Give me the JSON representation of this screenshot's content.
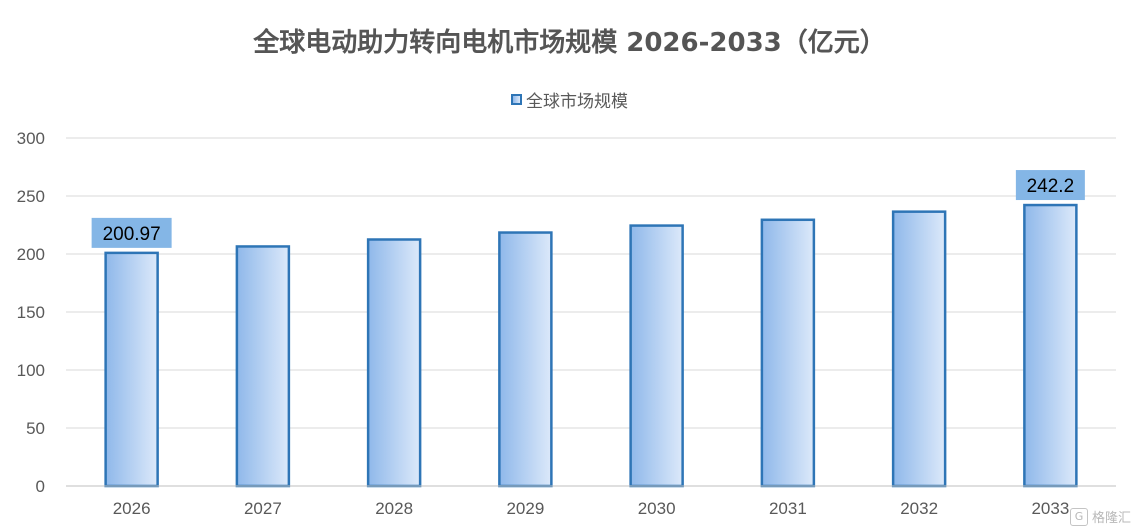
{
  "chart_data": {
    "type": "bar",
    "title": "全球电动助力转向电机市场规模 2026-2033（亿元）",
    "categories": [
      "2026",
      "2027",
      "2028",
      "2029",
      "2030",
      "2031",
      "2032",
      "2033"
    ],
    "series": [
      {
        "name": "全球市场规模",
        "values": [
          200.97,
          206.5,
          212.5,
          218.5,
          224.5,
          229.5,
          236.5,
          242.2
        ]
      }
    ],
    "data_labels": [
      {
        "index": 0,
        "text": "200.97"
      },
      {
        "index": 7,
        "text": "242.2"
      }
    ],
    "ylim": [
      0,
      300
    ],
    "yticks": [
      0,
      50,
      100,
      150,
      200,
      250,
      300
    ],
    "xlabel": "",
    "ylabel": "",
    "grid": true,
    "legend_position": "top",
    "colors": {
      "bar_fill_start": "#8fb8ea",
      "bar_fill_end": "#dce9fa",
      "bar_border": "#2e75b6",
      "label_bg": "#84b6e6",
      "grid": "#d9d9d9",
      "axis_text": "#595959",
      "title": "#555555"
    }
  },
  "watermark": {
    "icon": "gelonghui-logo-icon",
    "text": "格隆汇"
  }
}
